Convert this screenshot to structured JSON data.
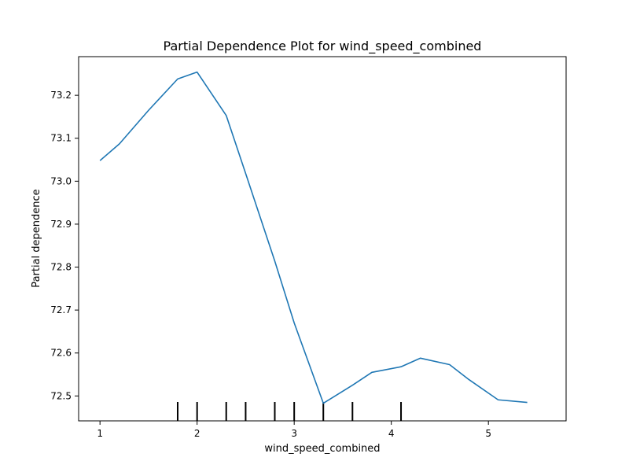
{
  "chart_data": {
    "type": "line",
    "title": "Partial Dependence Plot for wind_speed_combined",
    "xlabel": "wind_speed_combined",
    "ylabel": "Partial dependence",
    "xlim": [
      0.78,
      5.8
    ],
    "ylim": [
      72.442,
      73.29
    ],
    "x_ticks": [
      1,
      2,
      3,
      4,
      5
    ],
    "y_ticks": [
      72.5,
      72.6,
      72.7,
      72.8,
      72.9,
      73.0,
      73.1,
      73.2
    ],
    "y_tick_labels": [
      "72.5",
      "72.6",
      "72.7",
      "72.8",
      "72.9",
      "73.0",
      "73.1",
      "73.2"
    ],
    "series": [
      {
        "color": "#1f77b4",
        "x": [
          1.0,
          1.2,
          1.5,
          1.8,
          2.0,
          2.3,
          2.5,
          2.8,
          3.0,
          3.3,
          3.6,
          3.8,
          4.1,
          4.3,
          4.6,
          4.8,
          5.1,
          5.4
        ],
        "y": [
          73.048,
          73.087,
          73.165,
          73.238,
          73.254,
          73.153,
          73.018,
          72.814,
          72.67,
          72.483,
          72.525,
          72.555,
          72.568,
          72.588,
          72.573,
          72.538,
          72.491,
          72.485
        ]
      }
    ],
    "rug": {
      "color": "#000000",
      "x": [
        1.8,
        2.0,
        2.3,
        2.5,
        2.8,
        3.0,
        3.3,
        3.6,
        4.1
      ]
    },
    "grid": false,
    "legend": false
  }
}
